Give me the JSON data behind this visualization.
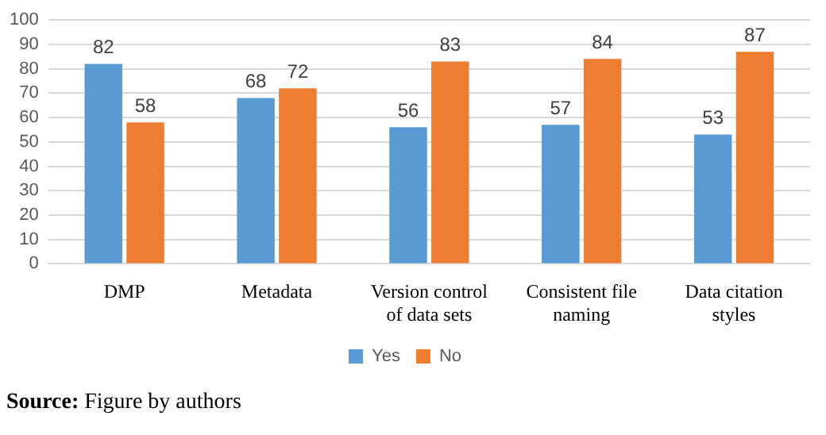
{
  "chart_data": {
    "type": "bar",
    "categories": [
      "DMP",
      "Metadata",
      "Version control of data sets",
      "Consistent file naming",
      "Data citation styles"
    ],
    "series": [
      {
        "name": "Yes",
        "color": "#5b9bd5",
        "values": [
          82,
          68,
          56,
          57,
          53
        ]
      },
      {
        "name": "No",
        "color": "#ed7d31",
        "values": [
          58,
          72,
          83,
          84,
          87
        ]
      }
    ],
    "ylim": [
      0,
      100
    ],
    "yticks": [
      0,
      10,
      20,
      30,
      40,
      50,
      60,
      70,
      80,
      90,
      100
    ],
    "grid": "y",
    "legend": "bottom",
    "data_labels": true,
    "annotations": [
      "Source: Figure by authors"
    ]
  }
}
